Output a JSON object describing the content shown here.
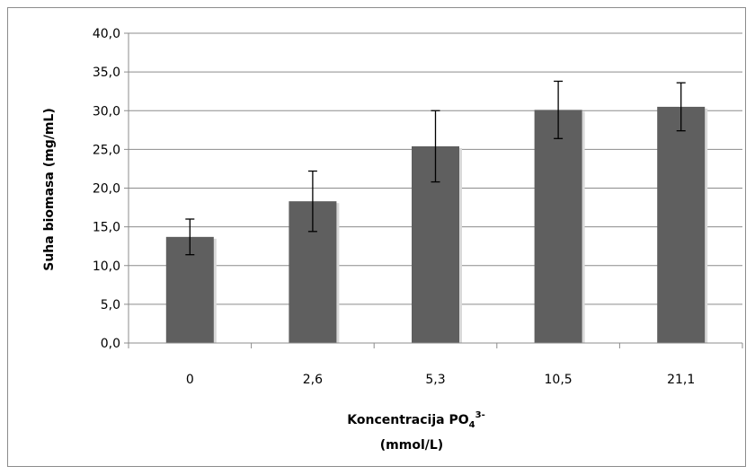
{
  "chart_data": {
    "type": "bar",
    "categories": [
      "0",
      "2,6",
      "5,3",
      "10,5",
      "21,1"
    ],
    "values": [
      13.7,
      18.3,
      25.4,
      30.1,
      30.5
    ],
    "error_low": [
      11.4,
      14.4,
      20.8,
      26.4,
      27.4
    ],
    "error_high": [
      16.0,
      22.2,
      30.0,
      33.8,
      33.6
    ],
    "ylim": [
      0,
      40
    ],
    "yticks": [
      0,
      5,
      10,
      15,
      20,
      25,
      30,
      35,
      40
    ],
    "ytick_labels": [
      "0,0",
      "5,0",
      "10,0",
      "15,0",
      "20,0",
      "25,0",
      "30,0",
      "35,0",
      "40,0"
    ],
    "ylabel": "Suha biomasa  (mg/mL)",
    "xlabel_line1_main": "Koncentracija PO",
    "xlabel_sub": "4",
    "xlabel_sup": "3-",
    "xlabel_line2": "(mmol/L)",
    "grid": true,
    "legend": "none",
    "bar_color": "#5f5f5f",
    "grid_color": "#8c8c8c"
  }
}
